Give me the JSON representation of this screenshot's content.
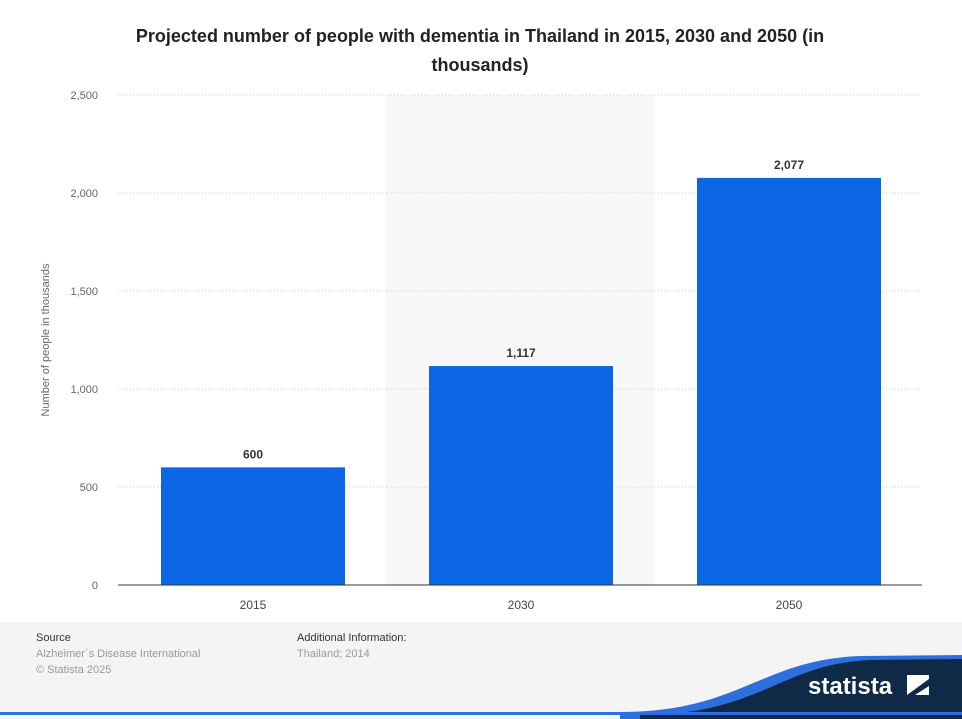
{
  "chart_data": {
    "type": "bar",
    "title": "Projected number of people with dementia in Thailand in 2015, 2030 and 2050 (in thousands)",
    "categories": [
      "2015",
      "2030",
      "2050"
    ],
    "values": [
      600,
      1117,
      2077
    ],
    "value_labels": [
      "600",
      "1,117",
      "2,077"
    ],
    "xlabel": "",
    "ylabel": "Number of people in thousands",
    "ylim": [
      0,
      2500
    ],
    "yticks": [
      0,
      500,
      1000,
      1500,
      2000,
      2500
    ],
    "ytick_labels": [
      "0",
      "500",
      "1,000",
      "1,500",
      "2,000",
      "2,500"
    ],
    "grid": true,
    "bar_color": "#0a66e4"
  },
  "footer": {
    "source_label": "Source",
    "source": "Alzheimer´s Disease International",
    "copyright": "© Statista 2025",
    "info_label": "Additional Information:",
    "info": "Thailand; 2014",
    "brand": "statista"
  }
}
